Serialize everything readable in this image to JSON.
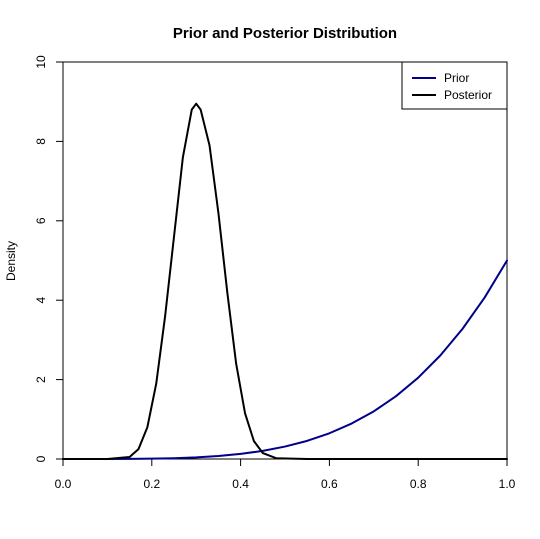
{
  "chart_data": {
    "type": "line",
    "title": "Prior and Posterior Distribution",
    "xlabel": "",
    "ylabel": "Density",
    "xlim": [
      0,
      1
    ],
    "ylim": [
      0,
      10
    ],
    "xticks": [
      "0.0",
      "0.2",
      "0.4",
      "0.6",
      "0.8",
      "1.0"
    ],
    "yticks": [
      "0",
      "2",
      "4",
      "6",
      "8",
      "10"
    ],
    "grid": false,
    "legend_position": "top-right",
    "series": [
      {
        "name": "Prior",
        "color": "#00008b",
        "x": [
          0.0,
          0.05,
          0.1,
          0.15,
          0.2,
          0.25,
          0.3,
          0.35,
          0.4,
          0.45,
          0.5,
          0.55,
          0.6,
          0.65,
          0.7,
          0.75,
          0.8,
          0.85,
          0.9,
          0.95,
          1.0
        ],
        "y": [
          0.0,
          0.0,
          0.001,
          0.003,
          0.008,
          0.02,
          0.04,
          0.075,
          0.128,
          0.205,
          0.313,
          0.457,
          0.648,
          0.893,
          1.2,
          1.582,
          2.048,
          2.61,
          3.281,
          4.073,
          5.0
        ]
      },
      {
        "name": "Posterior",
        "color": "#000000",
        "x": [
          0.0,
          0.1,
          0.15,
          0.17,
          0.19,
          0.21,
          0.23,
          0.25,
          0.27,
          0.29,
          0.3,
          0.31,
          0.33,
          0.35,
          0.37,
          0.39,
          0.41,
          0.43,
          0.45,
          0.48,
          0.55,
          1.0
        ],
        "y": [
          0.0,
          0.0,
          0.05,
          0.25,
          0.8,
          1.9,
          3.6,
          5.6,
          7.6,
          8.8,
          8.95,
          8.8,
          7.9,
          6.2,
          4.2,
          2.4,
          1.15,
          0.45,
          0.15,
          0.02,
          0.0,
          0.0
        ]
      }
    ]
  }
}
